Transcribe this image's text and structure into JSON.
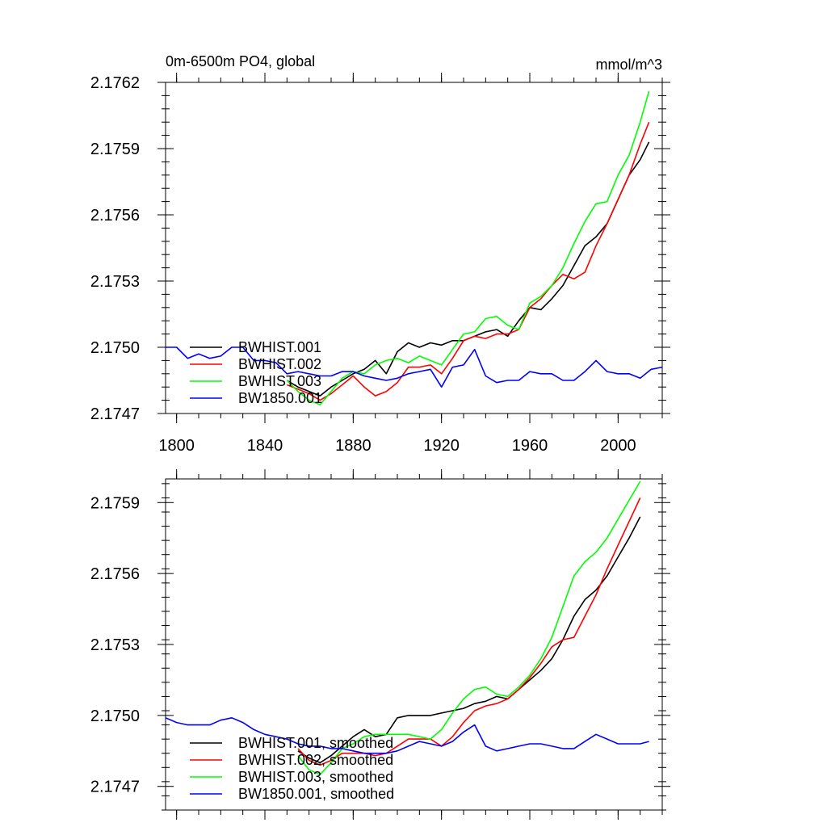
{
  "figure": {
    "title_left": "0m-6500m PO4, global",
    "title_right": "mmol/m^3",
    "background": "#ffffff"
  },
  "chart_data": [
    {
      "type": "line",
      "title": "0m-6500m PO4, global",
      "units": "mmol/m^3",
      "xlim": [
        1795,
        2020
      ],
      "ylim": [
        2.1747,
        2.1762
      ],
      "x_ticks": [
        1800,
        1840,
        1880,
        1920,
        1960,
        2000
      ],
      "x_tick_labels": [
        "1800",
        "1840",
        "1880",
        "1920",
        "1960",
        "2000"
      ],
      "y_ticks": [
        2.1747,
        2.175,
        2.1753,
        2.1756,
        2.1759,
        2.1762
      ],
      "y_tick_labels": [
        "2.1747",
        "2.1750",
        "2.1753",
        "2.1756",
        "2.1759",
        "2.1762"
      ],
      "legend_position": "lower-left",
      "series": [
        {
          "name": "BWHIST.001",
          "color": "#000000",
          "x": [
            1850,
            1855,
            1860,
            1865,
            1870,
            1875,
            1880,
            1885,
            1890,
            1895,
            1900,
            1905,
            1910,
            1915,
            1920,
            1925,
            1930,
            1935,
            1940,
            1945,
            1950,
            1955,
            1960,
            1965,
            1970,
            1975,
            1980,
            1985,
            1990,
            1995,
            2000,
            2005,
            2010,
            2014
          ],
          "values": [
            2.17485,
            2.17482,
            2.1748,
            2.17478,
            2.17482,
            2.17485,
            2.17488,
            2.1749,
            2.17494,
            2.17488,
            2.17498,
            2.17502,
            2.175,
            2.17502,
            2.17501,
            2.17503,
            2.17503,
            2.17505,
            2.17507,
            2.17508,
            2.17505,
            2.17512,
            2.17518,
            2.17517,
            2.17522,
            2.17528,
            2.17537,
            2.17546,
            2.1755,
            2.17556,
            2.17567,
            2.17578,
            2.17585,
            2.17593
          ]
        },
        {
          "name": "BWHIST.002",
          "color": "#ff0000",
          "x": [
            1850,
            1855,
            1860,
            1865,
            1870,
            1875,
            1880,
            1885,
            1890,
            1895,
            1900,
            1905,
            1910,
            1915,
            1920,
            1925,
            1930,
            1935,
            1940,
            1945,
            1950,
            1955,
            1960,
            1965,
            1970,
            1975,
            1980,
            1985,
            1990,
            1995,
            2000,
            2005,
            2010,
            2014
          ],
          "values": [
            2.17483,
            2.17481,
            2.17479,
            2.17476,
            2.17479,
            2.17483,
            2.17487,
            2.17482,
            2.17478,
            2.1748,
            2.17484,
            2.17491,
            2.17491,
            2.17492,
            2.17488,
            2.17495,
            2.17503,
            2.17505,
            2.17504,
            2.17506,
            2.17506,
            2.17508,
            2.17518,
            2.17522,
            2.17528,
            2.17533,
            2.17531,
            2.17534,
            2.17546,
            2.17556,
            2.17567,
            2.17578,
            2.17592,
            2.17602
          ]
        },
        {
          "name": "BWHIST.003",
          "color": "#00ff00",
          "x": [
            1850,
            1855,
            1860,
            1865,
            1870,
            1875,
            1880,
            1885,
            1890,
            1895,
            1900,
            1905,
            1910,
            1915,
            1920,
            1925,
            1930,
            1935,
            1940,
            1945,
            1950,
            1955,
            1960,
            1965,
            1970,
            1975,
            1980,
            1985,
            1990,
            1995,
            2000,
            2005,
            2010,
            2014
          ],
          "values": [
            2.17485,
            2.1748,
            2.17476,
            2.17474,
            2.1748,
            2.17486,
            2.17489,
            2.17488,
            2.17492,
            2.17494,
            2.17495,
            2.17493,
            2.17496,
            2.17494,
            2.17492,
            2.17499,
            2.17506,
            2.17507,
            2.17513,
            2.17514,
            2.1751,
            2.17508,
            2.1752,
            2.17523,
            2.17528,
            2.17536,
            2.17547,
            2.17557,
            2.17565,
            2.17566,
            2.17578,
            2.17587,
            2.17602,
            2.17616
          ]
        },
        {
          "name": "BW1850.001",
          "color": "#0000ff",
          "x": [
            1795,
            1800,
            1805,
            1810,
            1815,
            1820,
            1825,
            1830,
            1835,
            1840,
            1845,
            1850,
            1855,
            1860,
            1865,
            1870,
            1875,
            1880,
            1885,
            1890,
            1895,
            1900,
            1905,
            1910,
            1915,
            1920,
            1925,
            1930,
            1935,
            1940,
            1945,
            1950,
            1955,
            1960,
            1965,
            1970,
            1975,
            1980,
            1985,
            1990,
            1995,
            2000,
            2005,
            2010,
            2015,
            2020
          ],
          "values": [
            2.175,
            2.175,
            2.17495,
            2.17497,
            2.17495,
            2.17496,
            2.175,
            2.175,
            2.17494,
            2.17494,
            2.17493,
            2.17488,
            2.17489,
            2.17488,
            2.17487,
            2.17487,
            2.17489,
            2.17489,
            2.17487,
            2.17486,
            2.17485,
            2.17486,
            2.17488,
            2.17489,
            2.1749,
            2.17482,
            2.17491,
            2.17492,
            2.17499,
            2.17487,
            2.17484,
            2.17485,
            2.17485,
            2.17489,
            2.17488,
            2.17488,
            2.17485,
            2.17485,
            2.17489,
            2.17494,
            2.17489,
            2.17488,
            2.17488,
            2.17486,
            2.1749,
            2.17491
          ]
        }
      ]
    },
    {
      "type": "line",
      "xlim": [
        1795,
        2020
      ],
      "ylim": [
        2.1746,
        2.176
      ],
      "x_ticks": [
        1800,
        1840,
        1880,
        1920,
        1960,
        2000
      ],
      "y_ticks": [
        2.1747,
        2.175,
        2.1753,
        2.1756,
        2.1759
      ],
      "y_tick_labels": [
        "2.1747",
        "2.1750",
        "2.1753",
        "2.1756",
        "2.1759"
      ],
      "legend_position": "lower-left",
      "series": [
        {
          "name": "BWHIST.001, smoothed",
          "color": "#000000",
          "x": [
            1855,
            1860,
            1865,
            1870,
            1875,
            1880,
            1885,
            1890,
            1895,
            1900,
            1905,
            1910,
            1915,
            1920,
            1925,
            1930,
            1935,
            1940,
            1945,
            1950,
            1955,
            1960,
            1965,
            1970,
            1975,
            1980,
            1985,
            1990,
            1995,
            2000,
            2005,
            2010
          ],
          "values": [
            2.17485,
            2.17482,
            2.1748,
            2.17483,
            2.17487,
            2.17491,
            2.17494,
            2.17491,
            2.17492,
            2.17499,
            2.175,
            2.175,
            2.175,
            2.17501,
            2.17502,
            2.17503,
            2.17505,
            2.17506,
            2.17508,
            2.17507,
            2.17511,
            2.17515,
            2.17519,
            2.17524,
            2.17532,
            2.17542,
            2.17549,
            2.17553,
            2.17559,
            2.17567,
            2.17575,
            2.17584
          ]
        },
        {
          "name": "BWHIST.002, smoothed",
          "color": "#ff0000",
          "x": [
            1855,
            1860,
            1865,
            1870,
            1875,
            1880,
            1885,
            1890,
            1895,
            1900,
            1905,
            1910,
            1915,
            1920,
            1925,
            1930,
            1935,
            1940,
            1945,
            1950,
            1955,
            1960,
            1965,
            1970,
            1975,
            1980,
            1985,
            1990,
            1995,
            2000,
            2005,
            2010
          ],
          "values": [
            2.17486,
            2.17481,
            2.17479,
            2.17481,
            2.17484,
            2.17484,
            2.17484,
            2.17483,
            2.17484,
            2.17487,
            2.1749,
            2.1749,
            2.1749,
            2.17487,
            2.17491,
            2.17497,
            2.17502,
            2.17504,
            2.17505,
            2.17507,
            2.17511,
            2.17516,
            2.17522,
            2.17529,
            2.17532,
            2.17533,
            2.17542,
            2.17551,
            2.17562,
            2.17572,
            2.17582,
            2.17592
          ]
        },
        {
          "name": "BWHIST.003, smoothed",
          "color": "#00ff00",
          "x": [
            1855,
            1860,
            1865,
            1870,
            1875,
            1880,
            1885,
            1890,
            1895,
            1900,
            1905,
            1910,
            1915,
            1920,
            1925,
            1930,
            1935,
            1940,
            1945,
            1950,
            1955,
            1960,
            1965,
            1970,
            1975,
            1980,
            1985,
            1990,
            1995,
            2000,
            2005,
            2010
          ],
          "values": [
            2.17483,
            2.17477,
            2.17475,
            2.1748,
            2.17486,
            2.17488,
            2.17491,
            2.17492,
            2.17492,
            2.17492,
            2.17492,
            2.17491,
            2.1749,
            2.17494,
            2.17501,
            2.17507,
            2.17511,
            2.17512,
            2.17509,
            2.17508,
            2.17512,
            2.17517,
            2.17524,
            2.17533,
            2.17546,
            2.17559,
            2.17565,
            2.17569,
            2.17575,
            2.17583,
            2.17591,
            2.17599
          ]
        },
        {
          "name": "BW1850.001, smoothed",
          "color": "#0000ff",
          "x": [
            1795,
            1800,
            1805,
            1810,
            1815,
            1820,
            1825,
            1830,
            1835,
            1840,
            1845,
            1850,
            1855,
            1860,
            1865,
            1870,
            1875,
            1880,
            1885,
            1890,
            1895,
            1900,
            1905,
            1910,
            1915,
            1920,
            1925,
            1930,
            1935,
            1940,
            1945,
            1950,
            1955,
            1960,
            1965,
            1970,
            1975,
            1980,
            1985,
            1990,
            1995,
            2000,
            2005,
            2010,
            2014
          ],
          "values": [
            2.17499,
            2.17497,
            2.17496,
            2.17496,
            2.17496,
            2.17498,
            2.17499,
            2.17497,
            2.17494,
            2.17492,
            2.17491,
            2.1749,
            2.17488,
            2.17487,
            2.17487,
            2.17486,
            2.17486,
            2.17485,
            2.17484,
            2.17484,
            2.17484,
            2.17485,
            2.17487,
            2.17489,
            2.17488,
            2.17487,
            2.17489,
            2.17493,
            2.17496,
            2.17487,
            2.17485,
            2.17486,
            2.17487,
            2.17488,
            2.17488,
            2.17487,
            2.17486,
            2.17486,
            2.17489,
            2.17492,
            2.1749,
            2.17488,
            2.17488,
            2.17488,
            2.17489
          ]
        }
      ]
    }
  ]
}
